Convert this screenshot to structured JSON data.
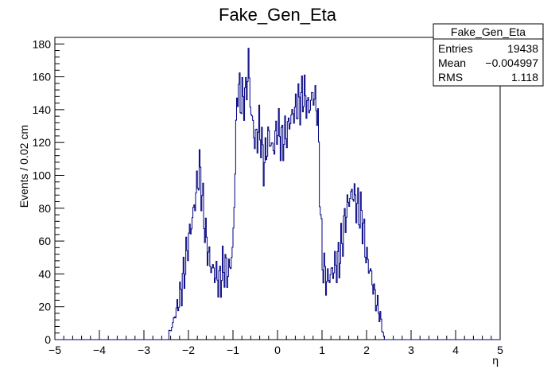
{
  "chart_data": {
    "type": "histogram-step",
    "title": "Fake_Gen_Eta",
    "xlabel": "η",
    "ylabel": "Events / 0.02 cm",
    "xlim": [
      -5,
      5
    ],
    "ylim": [
      0,
      184
    ],
    "x_ticks": [
      -5,
      -4,
      -3,
      -2,
      -1,
      0,
      1,
      2,
      3,
      4,
      5
    ],
    "x_tick_labels": [
      "−5",
      "−4",
      "−3",
      "−2",
      "−1",
      "0",
      "1",
      "2",
      "3",
      "4",
      "5"
    ],
    "y_ticks": [
      0,
      20,
      40,
      60,
      80,
      100,
      120,
      140,
      160,
      180
    ],
    "y_tick_labels": [
      "0",
      "20",
      "40",
      "60",
      "80",
      "100",
      "120",
      "140",
      "160",
      "180"
    ],
    "grid": false,
    "line_color": "#000080",
    "bin_width": 0.02,
    "series": [
      {
        "x": [
          -2.4,
          -2.3,
          -2.2,
          -2.1,
          -2.0,
          -1.9,
          -1.8,
          -1.75,
          -1.7,
          -1.6,
          -1.5,
          -1.4,
          -1.3,
          -1.2,
          -1.1,
          -1.0,
          -0.9,
          -0.8,
          -0.7,
          -0.65,
          -0.6,
          -0.5,
          -0.4,
          -0.3,
          -0.2,
          -0.1,
          0.0,
          0.1,
          0.2,
          0.3,
          0.4,
          0.5,
          0.6,
          0.7,
          0.8,
          0.9,
          1.0,
          1.1,
          1.2,
          1.3,
          1.4,
          1.5,
          1.6,
          1.7,
          1.8,
          1.9,
          2.0,
          2.1,
          2.2,
          2.3,
          2.4
        ],
        "y": [
          5,
          15,
          25,
          40,
          60,
          75,
          95,
          105,
          90,
          60,
          45,
          40,
          35,
          45,
          40,
          55,
          155,
          145,
          150,
          170,
          140,
          120,
          130,
          105,
          125,
          115,
          130,
          120,
          125,
          135,
          140,
          145,
          150,
          140,
          150,
          140,
          50,
          35,
          40,
          45,
          50,
          70,
          85,
          90,
          80,
          75,
          50,
          40,
          25,
          15,
          0
        ]
      }
    ],
    "stats_box": {
      "title": "Fake_Gen_Eta",
      "rows": [
        {
          "label": "Entries",
          "value": "19438"
        },
        {
          "label": "Mean",
          "value": "−0.004997"
        },
        {
          "label": "RMS",
          "value": "1.118"
        }
      ]
    }
  }
}
